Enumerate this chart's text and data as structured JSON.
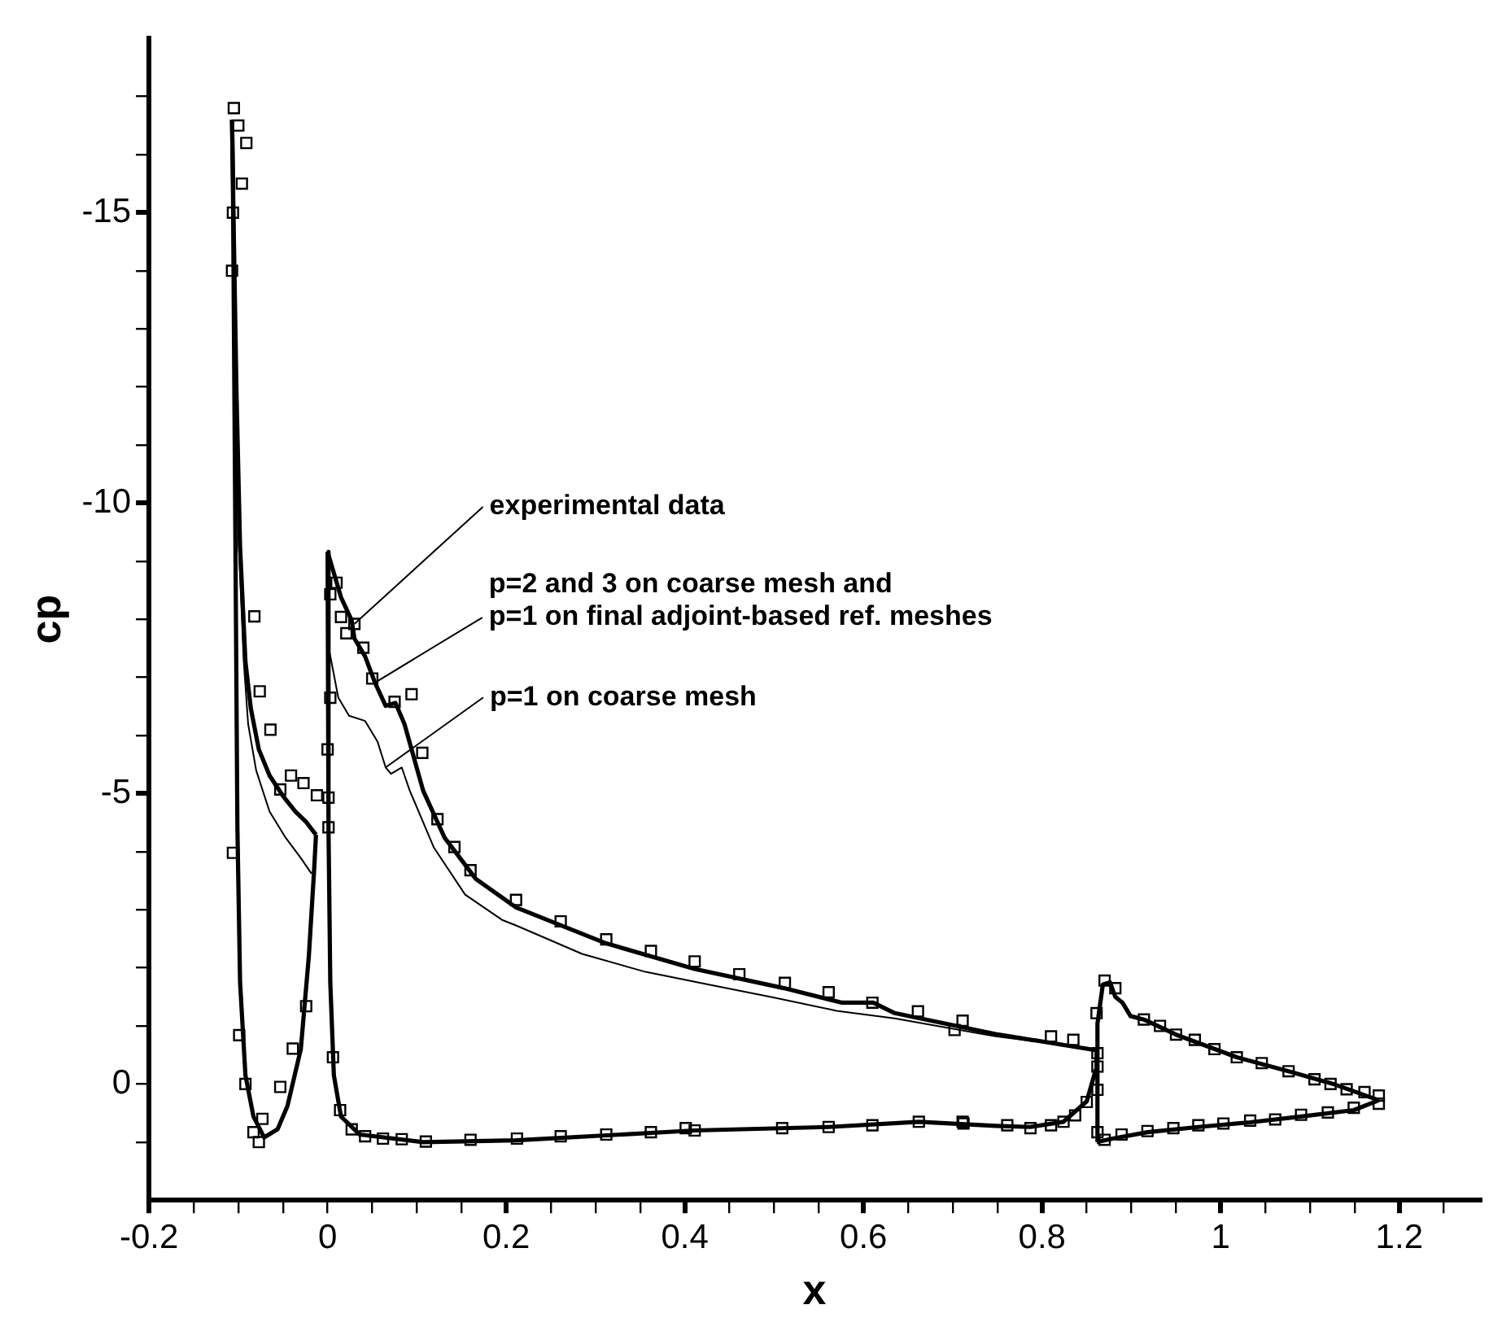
{
  "chart_data": {
    "type": "line",
    "xlabel": "x",
    "ylabel": "cp",
    "xlim": [
      -0.2,
      1.29
    ],
    "ylim": [
      2,
      -18
    ],
    "xticks": [
      -0.2,
      {
        "value": -0.15,
        "label": null
      },
      {
        "value": -0.1,
        "label": null
      },
      {
        "value": -0.05,
        "label": null
      },
      0,
      {
        "value": 0.05,
        "label": null
      },
      {
        "value": 0.1,
        "label": null
      },
      {
        "value": 0.15,
        "label": null
      },
      0.2,
      {
        "value": 0.25,
        "label": null
      },
      {
        "value": 0.3,
        "label": null
      },
      {
        "value": 0.35,
        "label": null
      },
      0.4,
      {
        "value": 0.45,
        "label": null
      },
      {
        "value": 0.5,
        "label": null
      },
      {
        "value": 0.55,
        "label": null
      },
      0.6,
      {
        "value": 0.65,
        "label": null
      },
      {
        "value": 0.7,
        "label": null
      },
      {
        "value": 0.75,
        "label": null
      },
      0.8,
      {
        "value": 0.85,
        "label": null
      },
      {
        "value": 0.9,
        "label": null
      },
      {
        "value": 0.95,
        "label": null
      },
      1,
      {
        "value": 1.05,
        "label": null
      },
      {
        "value": 1.1,
        "label": null
      },
      {
        "value": 1.15,
        "label": null
      },
      1.2,
      {
        "value": 1.25,
        "label": null
      }
    ],
    "yticks": [
      {
        "value": -17,
        "label": null
      },
      {
        "value": -16,
        "label": null
      },
      -15,
      {
        "value": -14,
        "label": null
      },
      {
        "value": -13,
        "label": null
      },
      {
        "value": -12,
        "label": null
      },
      {
        "value": -11,
        "label": null
      },
      -10,
      {
        "value": -9,
        "label": null
      },
      {
        "value": -8,
        "label": null
      },
      {
        "value": -7,
        "label": null
      },
      {
        "value": -6,
        "label": null
      },
      -5,
      {
        "value": -4,
        "label": null
      },
      {
        "value": -3,
        "label": null
      },
      {
        "value": -2,
        "label": null
      },
      {
        "value": -1,
        "label": null
      },
      0,
      {
        "value": 1,
        "label": null
      }
    ],
    "grid": false,
    "legend": false,
    "series": [
      {
        "type": "scatter",
        "marker": "square",
        "color": "#000000",
        "x": [
          -0.105,
          -0.1,
          -0.091,
          -0.096,
          -0.106,
          -0.107,
          -0.082,
          -0.076,
          -0.064,
          -0.041,
          -0.027,
          -0.053,
          -0.012,
          -0.106,
          -0.024,
          -0.039,
          -0.099,
          -0.092,
          -0.053,
          -0.073,
          -0.083,
          -0.077,
          0.003,
          0.0,
          0.001,
          0.001,
          0.006,
          0.014,
          0.027,
          0.042,
          0.062,
          0.083,
          0.11,
          0.16,
          0.003,
          0.01,
          0.015,
          0.03,
          0.021,
          0.04,
          0.05,
          0.075,
          0.094,
          0.106,
          0.123,
          0.142,
          0.16,
          0.211,
          0.261,
          0.312,
          0.362,
          0.411,
          0.461,
          0.512,
          0.561,
          0.61,
          0.661,
          0.711,
          0.702,
          0.81,
          0.835,
          0.862,
          0.862,
          0.862,
          0.861,
          0.87,
          0.882,
          0.914,
          0.932,
          0.95,
          0.971,
          0.993,
          1.018,
          1.046,
          1.076,
          1.105,
          1.123,
          1.141,
          1.161,
          1.177,
          1.177,
          0.862,
          0.87,
          0.889,
          0.918,
          0.947,
          0.975,
          1.003,
          1.033,
          1.061,
          1.09,
          1.12,
          1.149,
          0.712,
          0.761,
          0.787,
          0.81,
          0.824,
          0.837,
          0.85,
          0.212,
          0.261,
          0.312,
          0.362,
          0.401,
          0.411,
          0.509,
          0.561,
          0.61,
          0.662,
          0.711
        ],
        "values": [
          -16.8,
          -16.5,
          -16.2,
          -15.5,
          -15.0,
          -14.0,
          -8.05,
          -6.76,
          -6.1,
          -5.31,
          -5.18,
          -5.07,
          -4.97,
          -3.98,
          -1.34,
          -0.61,
          -0.84,
          0.0,
          0.05,
          0.6,
          0.83,
          1.0,
          -6.65,
          -5.76,
          -4.93,
          -4.42,
          -0.46,
          0.45,
          0.78,
          0.9,
          0.94,
          0.95,
          0.99,
          0.96,
          -8.43,
          -8.63,
          -8.04,
          -7.92,
          -7.76,
          -7.51,
          -6.98,
          -6.58,
          -6.71,
          -5.7,
          -4.56,
          -4.08,
          -3.68,
          -3.17,
          -2.8,
          -2.49,
          -2.29,
          -2.11,
          -1.89,
          -1.74,
          -1.58,
          -1.4,
          -1.25,
          -1.09,
          -0.93,
          -0.82,
          -0.76,
          -0.53,
          -0.3,
          0.1,
          -1.22,
          -1.78,
          -1.65,
          -1.11,
          -1.0,
          -0.85,
          -0.76,
          -0.6,
          -0.46,
          -0.36,
          -0.22,
          -0.08,
          0.0,
          0.09,
          0.14,
          0.2,
          0.34,
          0.83,
          0.96,
          0.87,
          0.81,
          0.76,
          0.71,
          0.68,
          0.63,
          0.61,
          0.53,
          0.49,
          0.41,
          0.68,
          0.71,
          0.76,
          0.71,
          0.65,
          0.54,
          0.31,
          0.94,
          0.9,
          0.87,
          0.83,
          0.76,
          0.8,
          0.76,
          0.74,
          0.71,
          0.65,
          0.65
        ]
      },
      {
        "marker": "none",
        "line_style": "solid",
        "color": "#000000",
        "x": [
          -0.107,
          -0.105,
          -0.102,
          -0.098,
          -0.092,
          -0.086,
          -0.077,
          -0.065,
          -0.05,
          -0.036,
          -0.024,
          -0.013
        ],
        "values": [
          -16.6,
          -14.6,
          -11.9,
          -9.24,
          -7.27,
          -6.47,
          -5.76,
          -5.31,
          -4.96,
          -4.69,
          -4.51,
          -4.29
        ]
      },
      {
        "marker": "none",
        "line_style": "solid",
        "color": "#000000",
        "x": [
          -0.107,
          -0.106,
          -0.101,
          -0.098,
          -0.092,
          -0.083,
          -0.071,
          -0.056,
          -0.045,
          -0.03,
          -0.021,
          -0.015,
          -0.013
        ],
        "values": [
          -16.6,
          -15.5,
          -4.42,
          -1.75,
          -0.15,
          0.56,
          0.92,
          0.78,
          0.38,
          -0.6,
          -2.2,
          -3.71,
          -4.29
        ]
      },
      {
        "marker": "none",
        "line_style": "solid",
        "color": "#000000",
        "x": [
          0.0,
          0.015,
          0.027,
          0.03,
          0.042,
          0.053,
          0.065,
          0.076,
          0.086,
          0.107,
          0.131,
          0.166,
          0.211,
          0.312,
          0.411,
          0.511,
          0.576,
          0.611,
          0.635,
          0.748,
          0.861
        ],
        "values": [
          -9.16,
          -8.38,
          -7.98,
          -7.67,
          -7.36,
          -6.91,
          -6.51,
          -6.56,
          -6.2,
          -5.05,
          -4.24,
          -3.53,
          -3.04,
          -2.42,
          -1.98,
          -1.65,
          -1.4,
          -1.4,
          -1.22,
          -0.86,
          -0.58
        ]
      },
      {
        "marker": "none",
        "line_style": "solid",
        "color": "#000000",
        "x": [
          0.0,
          0.001,
          0.003,
          0.007,
          0.015,
          0.036,
          0.107,
          0.211,
          0.411,
          0.561,
          0.662,
          0.748,
          0.787,
          0.824,
          0.85,
          0.86,
          0.861
        ],
        "values": [
          -9.16,
          -4.42,
          -1.75,
          -0.15,
          0.56,
          0.87,
          1.0,
          0.97,
          0.8,
          0.74,
          0.65,
          0.72,
          0.74,
          0.65,
          0.3,
          -0.24,
          -0.58
        ]
      },
      {
        "marker": "none",
        "line_style": "solid",
        "color": "#000000",
        "x": [
          0.8615,
          0.862,
          0.868,
          0.876,
          0.882,
          0.89,
          0.899,
          0.914,
          0.95,
          1.018,
          1.076,
          1.128,
          1.177
        ],
        "values": [
          1.0,
          -1.04,
          -1.71,
          -1.75,
          -1.5,
          -1.4,
          -1.17,
          -1.11,
          -0.85,
          -0.46,
          -0.22,
          0.01,
          0.28
        ]
      },
      {
        "marker": "none",
        "line_style": "solid",
        "color": "#000000",
        "x": [
          0.8615,
          0.879,
          0.918,
          0.975,
          1.033,
          1.09,
          1.149,
          1.177
        ],
        "values": [
          1.0,
          0.94,
          0.83,
          0.74,
          0.66,
          0.56,
          0.45,
          0.28
        ]
      },
      {
        "marker": "none",
        "line_style": "solid",
        "color": "#000000",
        "x": [
          -0.107,
          -0.106,
          -0.104,
          -0.1,
          -0.094,
          -0.089,
          -0.08,
          -0.065,
          -0.047,
          -0.03,
          -0.018
        ],
        "values": [
          -16.4,
          -14.5,
          -12.0,
          -9.5,
          -7.3,
          -6.2,
          -5.4,
          -4.69,
          -4.24,
          -3.89,
          -3.62
        ]
      },
      {
        "marker": "none",
        "line_style": "solid",
        "color": "#000000",
        "x": [
          0.002,
          0.012,
          0.024,
          0.042,
          0.056,
          0.065,
          0.071,
          0.083,
          0.092,
          0.119,
          0.154,
          0.196,
          0.211,
          0.285,
          0.356,
          0.427,
          0.499,
          0.57,
          0.635,
          0.748,
          0.862
        ],
        "values": [
          -7.45,
          -6.65,
          -6.34,
          -6.25,
          -5.89,
          -5.45,
          -5.34,
          -5.45,
          -5.05,
          -4.07,
          -3.26,
          -2.82,
          -2.73,
          -2.24,
          -1.93,
          -1.71,
          -1.49,
          -1.26,
          -1.13,
          -0.82,
          -0.6
        ]
      }
    ],
    "annotations": [
      {
        "text": "experimental data",
        "x": 0.03,
        "y": -7.92
      },
      {
        "text": "p=2 and 3 on coarse mesh and\np=1 on final adjoint-based ref. meshes",
        "x": 0.053,
        "y": -6.91
      },
      {
        "text": "p=1 on coarse mesh",
        "x": 0.065,
        "y": -5.45
      }
    ]
  }
}
